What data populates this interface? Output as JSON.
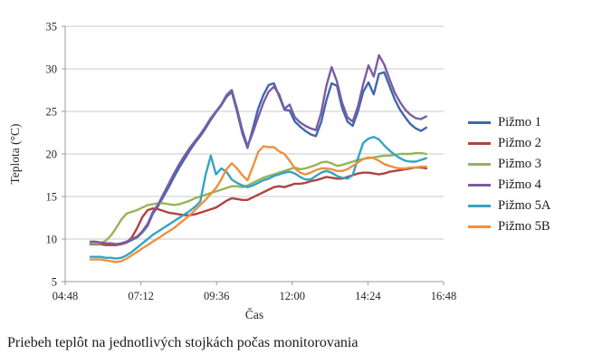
{
  "caption": "Priebeh teplôt na jednotlivých stojkách počas monitorovania",
  "chart_data": {
    "type": "line",
    "title": "",
    "xlabel": "Čas",
    "ylabel": "Teplota (°C)",
    "xlim": [
      4.8,
      16.8
    ],
    "ylim": [
      5,
      35
    ],
    "grid": "horizontal-only",
    "legend_position": "right",
    "axis_color": "#9B9B9B",
    "gridline_color": "#C9C9C9",
    "y_ticks": [
      5,
      10,
      15,
      20,
      25,
      30,
      35
    ],
    "x_ticks": [
      {
        "value": 4.8,
        "label": "04:48"
      },
      {
        "value": 7.2,
        "label": "07:12"
      },
      {
        "value": 9.6,
        "label": "09:36"
      },
      {
        "value": 12.0,
        "label": "12:00"
      },
      {
        "value": 14.4,
        "label": "14:24"
      },
      {
        "value": 16.8,
        "label": "16:48"
      }
    ],
    "x_unit": "hours (decimal time of day)",
    "x": [
      5.6,
      5.75,
      5.917,
      6.083,
      6.25,
      6.417,
      6.583,
      6.75,
      6.917,
      7.083,
      7.25,
      7.417,
      7.583,
      7.75,
      7.917,
      8.083,
      8.25,
      8.417,
      8.583,
      8.75,
      8.917,
      9.083,
      9.25,
      9.417,
      9.583,
      9.75,
      9.917,
      10.083,
      10.25,
      10.417,
      10.583,
      10.75,
      10.917,
      11.083,
      11.25,
      11.417,
      11.583,
      11.75,
      11.917,
      12.083,
      12.25,
      12.417,
      12.583,
      12.75,
      12.917,
      13.083,
      13.25,
      13.417,
      13.583,
      13.75,
      13.917,
      14.083,
      14.25,
      14.417,
      14.583,
      14.75,
      14.917,
      15.083,
      15.25,
      15.417,
      15.583,
      15.75,
      15.917,
      16.083,
      16.25
    ],
    "series": [
      {
        "name": "Pižmo 1",
        "color": "#4067AD",
        "values": [
          9.4,
          9.4,
          9.4,
          9.3,
          9.3,
          9.3,
          9.4,
          9.6,
          9.9,
          10.2,
          10.8,
          11.6,
          13.0,
          13.9,
          15.0,
          16.1,
          17.3,
          18.4,
          19.4,
          20.4,
          21.3,
          22.1,
          23.0,
          24.0,
          24.9,
          25.7,
          26.7,
          27.3,
          25.0,
          22.4,
          20.7,
          23.0,
          25.3,
          26.9,
          28.1,
          28.3,
          26.8,
          25.2,
          25.1,
          23.8,
          23.2,
          22.7,
          22.3,
          22.1,
          23.7,
          26.3,
          28.3,
          28.0,
          25.4,
          23.8,
          23.3,
          25.0,
          27.3,
          28.4,
          27.0,
          29.4,
          29.6,
          28.0,
          26.4,
          25.2,
          24.3,
          23.5,
          23.0,
          22.7,
          23.1
        ]
      },
      {
        "name": "Pižmo 2",
        "color": "#AF4340",
        "values": [
          9.4,
          9.4,
          9.4,
          9.3,
          9.3,
          9.3,
          9.4,
          9.6,
          10.2,
          11.3,
          12.6,
          13.4,
          13.6,
          13.5,
          13.3,
          13.1,
          13.0,
          12.9,
          12.8,
          12.8,
          12.9,
          13.1,
          13.3,
          13.5,
          13.7,
          14.1,
          14.5,
          14.8,
          14.7,
          14.6,
          14.6,
          14.9,
          15.2,
          15.5,
          15.8,
          16.1,
          16.2,
          16.1,
          16.3,
          16.5,
          16.5,
          16.6,
          16.8,
          16.9,
          17.1,
          17.3,
          17.2,
          17.1,
          17.1,
          17.3,
          17.5,
          17.7,
          17.8,
          17.8,
          17.7,
          17.6,
          17.7,
          17.9,
          18.0,
          18.1,
          18.2,
          18.3,
          18.4,
          18.4,
          18.3
        ]
      },
      {
        "name": "Pižmo 3",
        "color": "#95B457",
        "values": [
          9.5,
          9.5,
          9.5,
          9.8,
          10.4,
          11.3,
          12.3,
          13.0,
          13.2,
          13.4,
          13.7,
          14.0,
          14.1,
          14.2,
          14.2,
          14.1,
          14.0,
          14.1,
          14.3,
          14.5,
          14.8,
          15.0,
          15.2,
          15.4,
          15.6,
          15.8,
          16.0,
          16.2,
          16.2,
          16.1,
          16.3,
          16.6,
          16.9,
          17.2,
          17.4,
          17.6,
          17.8,
          18.0,
          18.2,
          18.4,
          18.2,
          18.3,
          18.5,
          18.7,
          19.0,
          19.1,
          18.9,
          18.6,
          18.7,
          18.9,
          19.1,
          19.3,
          19.4,
          19.5,
          19.6,
          19.7,
          19.8,
          19.8,
          19.9,
          20.0,
          20.0,
          20.0,
          20.1,
          20.1,
          20.0
        ]
      },
      {
        "name": "Pižmo 4",
        "color": "#7B5CA3",
        "values": [
          9.7,
          9.7,
          9.6,
          9.5,
          9.5,
          9.4,
          9.5,
          9.7,
          10.0,
          10.3,
          10.9,
          11.8,
          13.2,
          14.1,
          15.3,
          16.5,
          17.7,
          18.8,
          19.8,
          20.7,
          21.5,
          22.3,
          23.2,
          24.2,
          25.0,
          25.8,
          26.9,
          27.5,
          25.3,
          22.8,
          20.9,
          22.5,
          24.3,
          26.0,
          27.3,
          27.9,
          27.0,
          25.3,
          25.8,
          24.3,
          23.7,
          23.3,
          23.0,
          22.8,
          24.8,
          28.0,
          30.2,
          28.5,
          26.0,
          24.3,
          23.8,
          25.6,
          28.2,
          30.4,
          29.1,
          31.6,
          30.5,
          28.8,
          27.2,
          26.1,
          25.2,
          24.6,
          24.2,
          24.1,
          24.4
        ]
      },
      {
        "name": "Pižmo 5A",
        "color": "#35A3C4",
        "values": [
          7.9,
          7.9,
          7.9,
          7.8,
          7.8,
          7.7,
          7.8,
          8.1,
          8.5,
          9.0,
          9.5,
          10.0,
          10.5,
          10.9,
          11.3,
          11.7,
          12.1,
          12.5,
          12.9,
          13.3,
          13.8,
          14.4,
          17.5,
          19.8,
          17.6,
          18.3,
          17.9,
          17.0,
          16.6,
          16.3,
          16.1,
          16.3,
          16.6,
          16.9,
          17.1,
          17.4,
          17.6,
          17.8,
          17.9,
          17.7,
          17.3,
          17.0,
          17.0,
          17.4,
          17.8,
          18.0,
          17.8,
          17.4,
          17.2,
          17.1,
          17.5,
          19.5,
          21.3,
          21.8,
          22.0,
          21.7,
          21.0,
          20.4,
          19.9,
          19.5,
          19.2,
          19.1,
          19.1,
          19.3,
          19.5
        ]
      },
      {
        "name": "Pižmo 5B",
        "color": "#EC9140",
        "values": [
          7.6,
          7.6,
          7.6,
          7.5,
          7.4,
          7.3,
          7.4,
          7.7,
          8.1,
          8.5,
          8.9,
          9.3,
          9.7,
          10.1,
          10.5,
          10.9,
          11.3,
          11.8,
          12.3,
          12.8,
          13.4,
          14.0,
          14.6,
          15.3,
          16.0,
          17.0,
          18.2,
          18.9,
          18.3,
          17.5,
          16.9,
          18.5,
          20.2,
          20.9,
          20.8,
          20.8,
          20.3,
          20.0,
          19.2,
          18.3,
          17.8,
          17.6,
          17.8,
          18.1,
          18.3,
          18.3,
          18.2,
          18.0,
          18.0,
          18.2,
          18.6,
          19.0,
          19.4,
          19.6,
          19.5,
          19.2,
          18.8,
          18.6,
          18.4,
          18.3,
          18.3,
          18.4,
          18.4,
          18.5,
          18.5
        ]
      }
    ]
  }
}
